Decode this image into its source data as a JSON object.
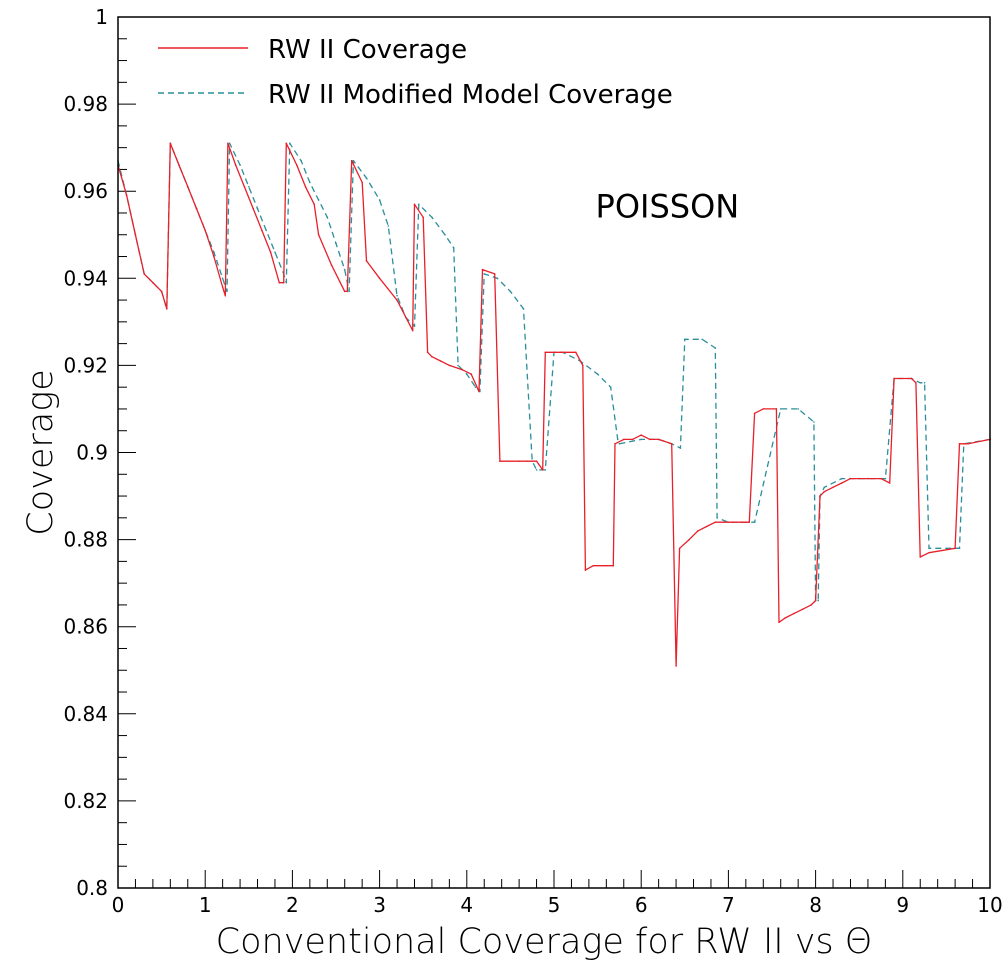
{
  "chart_data": {
    "type": "line",
    "title": "",
    "xlabel": "Conventional Coverage for RW II vs Θ",
    "ylabel": "Coverage",
    "xlim": [
      0,
      10
    ],
    "ylim": [
      0.8,
      1.0
    ],
    "x_ticks": [
      0,
      1,
      2,
      3,
      4,
      5,
      6,
      7,
      8,
      9,
      10
    ],
    "x_tick_labels": [
      "0",
      "1",
      "2",
      "3",
      "4",
      "5",
      "6",
      "7",
      "8",
      "9",
      "10"
    ],
    "y_ticks": [
      0.8,
      0.82,
      0.84,
      0.86,
      0.88,
      0.9,
      0.92,
      0.94,
      0.96,
      0.98,
      1.0
    ],
    "y_tick_labels": [
      "0.8",
      "0.82",
      "0.84",
      "0.86",
      "0.88",
      "0.9",
      "0.92",
      "0.94",
      "0.96",
      "0.98",
      "1"
    ],
    "grid": false,
    "legend": "top-left",
    "annotations": [
      {
        "text": "POISSON",
        "x": 6.3,
        "y": 0.954
      }
    ],
    "series": [
      {
        "name": "RW II Coverage",
        "color": "#e8202a",
        "style": "solid",
        "x": [
          0,
          0.1,
          0.2,
          0.3,
          0.4,
          0.5,
          0.56,
          0.6,
          0.7,
          0.8,
          0.9,
          1.0,
          1.1,
          1.2,
          1.23,
          1.26,
          1.35,
          1.45,
          1.55,
          1.65,
          1.75,
          1.85,
          1.9,
          1.93,
          2.05,
          2.15,
          2.25,
          2.3,
          2.45,
          2.6,
          2.63,
          2.68,
          2.8,
          2.85,
          3.0,
          3.2,
          3.38,
          3.4,
          3.5,
          3.55,
          3.6,
          3.7,
          3.8,
          3.95,
          4.05,
          4.14,
          4.18,
          4.32,
          4.38,
          4.6,
          4.7,
          4.8,
          4.87,
          4.9,
          5.1,
          5.25,
          5.33,
          5.36,
          5.45,
          5.6,
          5.68,
          5.7,
          5.8,
          5.9,
          6.0,
          6.1,
          6.2,
          6.35,
          6.4,
          6.44,
          6.55,
          6.65,
          6.75,
          6.85,
          6.95,
          7.05,
          7.15,
          7.24,
          7.3,
          7.4,
          7.55,
          7.58,
          7.65,
          7.75,
          7.85,
          7.95,
          8.0,
          8.05,
          8.1,
          8.2,
          8.3,
          8.4,
          8.6,
          8.75,
          8.85,
          8.9,
          9.1,
          9.15,
          9.2,
          9.3,
          9.6,
          9.65,
          9.75,
          10.0
        ],
        "y": [
          0.966,
          0.959,
          0.95,
          0.941,
          0.939,
          0.937,
          0.933,
          0.971,
          0.966,
          0.961,
          0.956,
          0.951,
          0.945,
          0.938,
          0.936,
          0.971,
          0.966,
          0.961,
          0.956,
          0.951,
          0.946,
          0.939,
          0.939,
          0.971,
          0.966,
          0.961,
          0.957,
          0.95,
          0.943,
          0.937,
          0.937,
          0.967,
          0.962,
          0.944,
          0.94,
          0.935,
          0.928,
          0.957,
          0.954,
          0.923,
          0.922,
          0.921,
          0.92,
          0.919,
          0.918,
          0.914,
          0.942,
          0.941,
          0.898,
          0.898,
          0.898,
          0.898,
          0.896,
          0.923,
          0.923,
          0.923,
          0.92,
          0.873,
          0.874,
          0.874,
          0.874,
          0.902,
          0.903,
          0.903,
          0.904,
          0.903,
          0.903,
          0.902,
          0.851,
          0.878,
          0.88,
          0.882,
          0.883,
          0.884,
          0.884,
          0.884,
          0.884,
          0.884,
          0.909,
          0.91,
          0.91,
          0.861,
          0.862,
          0.863,
          0.864,
          0.865,
          0.866,
          0.89,
          0.891,
          0.892,
          0.893,
          0.894,
          0.894,
          0.894,
          0.893,
          0.917,
          0.917,
          0.916,
          0.876,
          0.877,
          0.878,
          0.902,
          0.902,
          0.903
        ]
      },
      {
        "name": "RW II Modified Model Coverage",
        "color": "#2a8f9a",
        "style": "dashed",
        "x": [
          0,
          0.1,
          0.2,
          0.3,
          0.4,
          0.5,
          0.56,
          0.6,
          0.7,
          0.8,
          0.9,
          1.0,
          1.1,
          1.2,
          1.25,
          1.28,
          1.4,
          1.5,
          1.6,
          1.7,
          1.8,
          1.9,
          1.93,
          1.97,
          2.1,
          2.2,
          2.3,
          2.4,
          2.5,
          2.6,
          2.65,
          2.7,
          2.85,
          3.0,
          3.1,
          3.2,
          3.3,
          3.4,
          3.45,
          3.6,
          3.75,
          3.85,
          3.9,
          4.0,
          4.1,
          4.15,
          4.2,
          4.35,
          4.5,
          4.65,
          4.75,
          4.8,
          4.9,
          5.0,
          5.1,
          5.3,
          5.5,
          5.65,
          5.73,
          5.75,
          6.0,
          6.2,
          6.35,
          6.45,
          6.5,
          6.7,
          6.85,
          6.87,
          7.0,
          7.2,
          7.3,
          7.6,
          7.8,
          7.98,
          8.0,
          8.03,
          8.05,
          8.1,
          8.3,
          8.5,
          8.8,
          8.9,
          9.1,
          9.2,
          9.25,
          9.3,
          9.6,
          9.65,
          9.7,
          10.0
        ],
        "y": [
          0.967,
          0.959,
          0.95,
          0.941,
          0.939,
          0.937,
          0.933,
          0.971,
          0.966,
          0.961,
          0.956,
          0.951,
          0.946,
          0.94,
          0.937,
          0.971,
          0.966,
          0.961,
          0.956,
          0.951,
          0.946,
          0.941,
          0.939,
          0.971,
          0.967,
          0.962,
          0.958,
          0.954,
          0.948,
          0.942,
          0.937,
          0.967,
          0.963,
          0.958,
          0.952,
          0.936,
          0.931,
          0.929,
          0.957,
          0.954,
          0.95,
          0.947,
          0.92,
          0.918,
          0.915,
          0.914,
          0.941,
          0.94,
          0.937,
          0.933,
          0.898,
          0.896,
          0.896,
          0.923,
          0.923,
          0.921,
          0.918,
          0.915,
          0.903,
          0.902,
          0.903,
          0.903,
          0.902,
          0.901,
          0.926,
          0.926,
          0.924,
          0.885,
          0.884,
          0.884,
          0.884,
          0.91,
          0.91,
          0.907,
          0.866,
          0.866,
          0.89,
          0.892,
          0.894,
          0.894,
          0.894,
          0.917,
          0.917,
          0.916,
          0.916,
          0.878,
          0.878,
          0.878,
          0.902,
          0.903
        ]
      }
    ]
  }
}
